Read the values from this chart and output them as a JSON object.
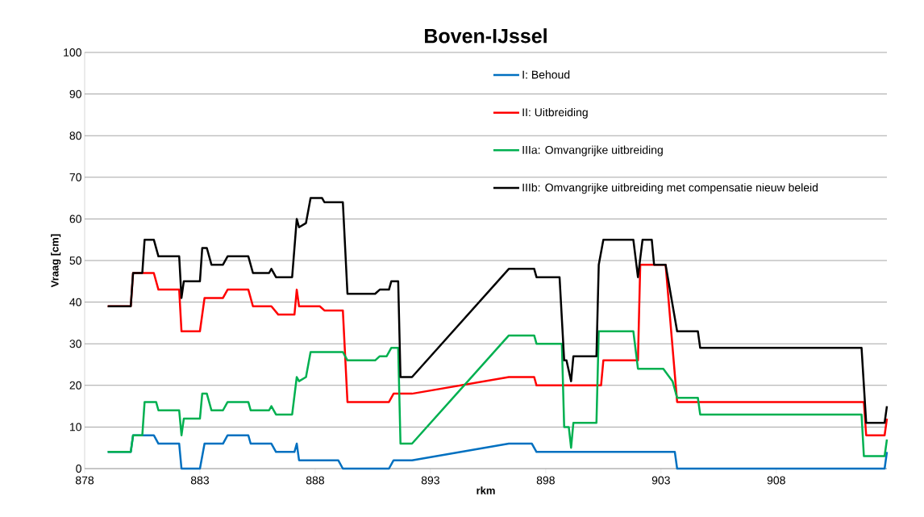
{
  "chart_data": {
    "type": "line",
    "title": "Boven-IJssel",
    "xlabel": "rkm",
    "ylabel": "Vraag [cm]",
    "xlim": [
      878,
      912.8
    ],
    "ylim": [
      0,
      100
    ],
    "xticks": [
      878,
      883,
      888,
      893,
      898,
      903,
      908
    ],
    "yticks": [
      0,
      10,
      20,
      30,
      40,
      50,
      60,
      70,
      80,
      90,
      100
    ],
    "grid": "y",
    "legend": "top right",
    "line_style": "solid",
    "series": [
      {
        "name": "I: Behoud",
        "color": "#0070c0",
        "x": [
          879.0,
          880.0,
          880.1,
          881.0,
          881.2,
          882.1,
          882.2,
          883.0,
          883.2,
          884.0,
          884.2,
          885.1,
          885.2,
          886.1,
          886.3,
          887.1,
          887.2,
          887.3,
          889.0,
          889.2,
          891.2,
          891.4,
          892.2,
          896.4,
          897.4,
          897.6,
          903.6,
          903.7,
          912.7,
          912.8
        ],
        "values": [
          4,
          4,
          8,
          8,
          6,
          6,
          0,
          0,
          6,
          6,
          8,
          8,
          6,
          6,
          4,
          4,
          6,
          2,
          2,
          0,
          0,
          2,
          2,
          6,
          6,
          4,
          4,
          0,
          0,
          4
        ]
      },
      {
        "name": "II: Uitbreiding",
        "color": "#ff0000",
        "x": [
          879.0,
          880.0,
          880.1,
          881.0,
          881.2,
          882.1,
          882.2,
          883.0,
          883.2,
          884.0,
          884.2,
          885.1,
          885.3,
          886.1,
          886.4,
          887.1,
          887.2,
          887.3,
          888.2,
          888.4,
          889.2,
          889.4,
          891.2,
          891.4,
          892.2,
          896.4,
          897.5,
          897.6,
          900.4,
          900.5,
          902.0,
          902.1,
          903.2,
          903.7,
          911.8,
          911.9,
          912.7,
          912.8
        ],
        "values": [
          39,
          39,
          47,
          47,
          43,
          43,
          33,
          33,
          41,
          41,
          43,
          43,
          39,
          39,
          37,
          37,
          43,
          39,
          39,
          38,
          38,
          16,
          16,
          18,
          18,
          22,
          22,
          20,
          20,
          26,
          26,
          49,
          49,
          16,
          16,
          8,
          8,
          12
        ]
      },
      {
        "name": "IIIa: Omvangrijke uitbreiding",
        "color": "#00b050",
        "x": [
          879.0,
          880.0,
          880.1,
          880.5,
          880.6,
          881.1,
          881.2,
          882.1,
          882.2,
          882.3,
          883.0,
          883.1,
          883.3,
          883.5,
          884.0,
          884.2,
          885.1,
          885.2,
          886.0,
          886.1,
          886.3,
          887.0,
          887.2,
          887.3,
          887.6,
          887.8,
          889.2,
          889.4,
          890.6,
          890.8,
          891.1,
          891.3,
          891.6,
          891.7,
          892.2,
          896.4,
          897.5,
          897.6,
          898.7,
          898.8,
          899.0,
          899.1,
          899.2,
          900.2,
          900.3,
          901.8,
          902.0,
          903.1,
          903.5,
          903.7,
          904.6,
          904.7,
          911.7,
          911.8,
          912.7,
          912.8
        ],
        "values": [
          4,
          4,
          8,
          8,
          16,
          16,
          14,
          14,
          8,
          12,
          12,
          18,
          18,
          14,
          14,
          16,
          16,
          14,
          14,
          15,
          13,
          13,
          22,
          21,
          22,
          28,
          28,
          26,
          26,
          27,
          27,
          29,
          29,
          6,
          6,
          32,
          32,
          30,
          30,
          10,
          10,
          5,
          11,
          11,
          33,
          33,
          24,
          24,
          21,
          17,
          17,
          13,
          13,
          3,
          3,
          7
        ]
      },
      {
        "name": "IIIb: Omvangrijke uitbreiding met compensatie nieuw beleid",
        "color": "#000000",
        "x": [
          879.0,
          880.0,
          880.1,
          880.5,
          880.6,
          881.0,
          881.2,
          882.1,
          882.2,
          882.3,
          883.0,
          883.1,
          883.3,
          883.5,
          884.0,
          884.2,
          885.1,
          885.3,
          886.0,
          886.1,
          886.3,
          887.0,
          887.2,
          887.3,
          887.6,
          887.8,
          888.3,
          888.4,
          889.2,
          889.4,
          890.6,
          890.8,
          891.2,
          891.3,
          891.6,
          891.7,
          892.2,
          896.4,
          897.5,
          897.6,
          898.6,
          898.8,
          898.9,
          899.1,
          899.2,
          900.2,
          900.3,
          900.5,
          901.8,
          902.0,
          902.2,
          902.6,
          902.7,
          903.2,
          903.7,
          904.6,
          904.7,
          911.7,
          911.9,
          912.7,
          912.8
        ],
        "values": [
          39,
          39,
          47,
          47,
          55,
          55,
          51,
          51,
          41,
          45,
          45,
          53,
          53,
          49,
          49,
          51,
          51,
          47,
          47,
          48,
          46,
          46,
          60,
          58,
          59,
          65,
          65,
          64,
          64,
          42,
          42,
          43,
          43,
          45,
          45,
          22,
          22,
          48,
          48,
          46,
          46,
          26,
          26,
          21,
          27,
          27,
          49,
          55,
          55,
          46,
          55,
          55,
          49,
          49,
          33,
          33,
          29,
          29,
          11,
          11,
          15
        ]
      }
    ]
  }
}
